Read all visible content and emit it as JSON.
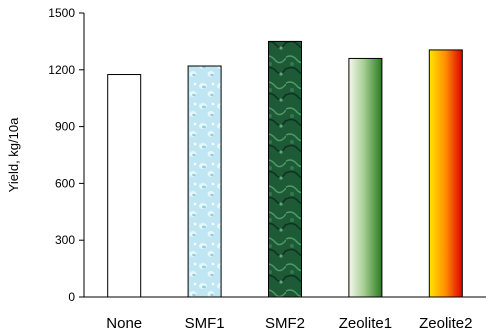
{
  "chart_data": {
    "type": "bar",
    "title": "",
    "xlabel": "",
    "ylabel": "Yield, kg/10a",
    "ylim": [
      0,
      1500
    ],
    "yticks": [
      0,
      300,
      600,
      900,
      1200,
      1500
    ],
    "grid": false,
    "categories": [
      "None",
      "SMF1",
      "SMF2",
      "Zeolite1",
      "Zeolite2"
    ],
    "values": [
      1175,
      1220,
      1350,
      1260,
      1305
    ],
    "bar_fills": [
      "white",
      "light-blue-water-texture",
      "dark-green-marble-texture",
      "white-to-green-gradient",
      "yellow-to-red-gradient"
    ],
    "colors": {
      "axis": "#000000",
      "smf1_light": "#d9f1f8",
      "smf1_dark": "#8fd0e3",
      "smf2_light": "#3f8c5c",
      "smf2_dark": "#123d25",
      "zeolite1_light": "#f1f6ea",
      "zeolite1_dark": "#2f7d25",
      "zeolite2_light": "#ffe200",
      "zeolite2_dark": "#e00000"
    }
  }
}
